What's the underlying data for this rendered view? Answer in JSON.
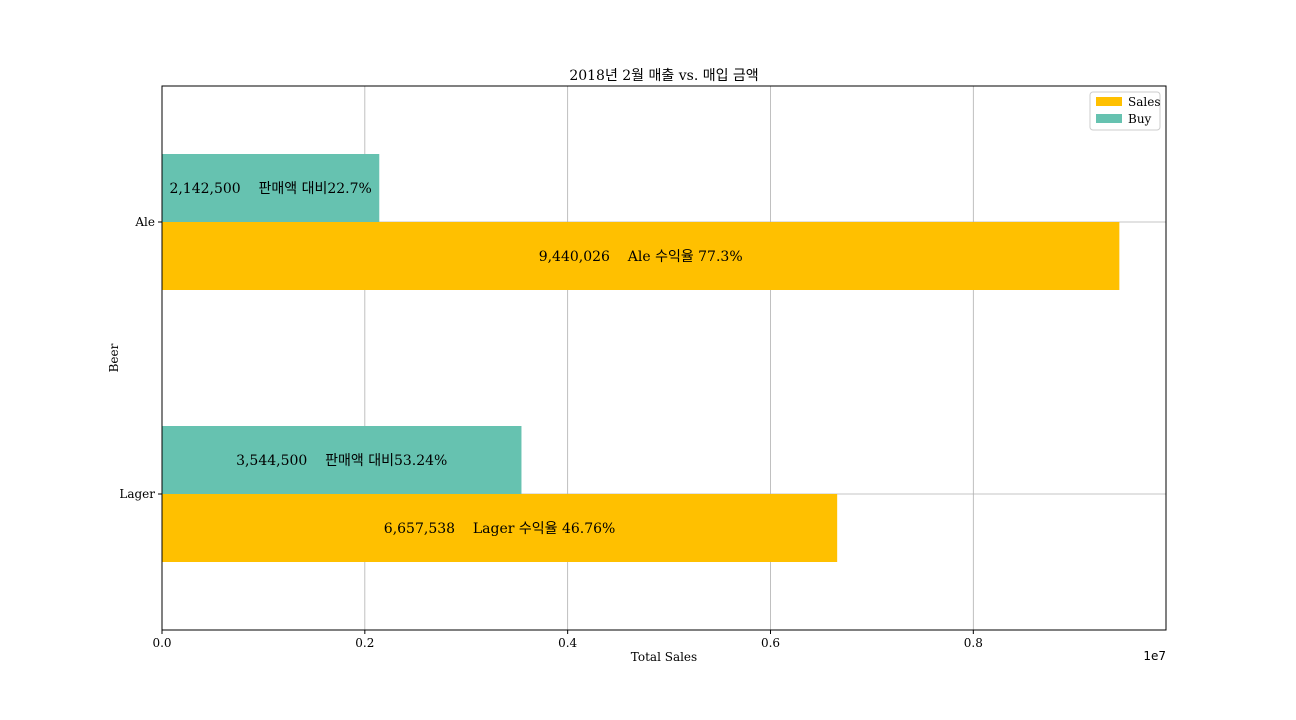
{
  "chart_data": {
    "type": "bar",
    "orientation": "horizontal",
    "title": "2018년 2월  매출 vs. 매입 금액",
    "xlabel": "Total Sales",
    "ylabel": "Beer",
    "x_offset_label": "1e7",
    "categories": [
      "Ale",
      "Lager"
    ],
    "xlim": [
      0,
      9900000
    ],
    "xticks": [
      0,
      2000000,
      4000000,
      6000000,
      8000000
    ],
    "xtick_labels": [
      "0.0",
      "0.2",
      "0.4",
      "0.6",
      "0.8"
    ],
    "grid": true,
    "legend_position": "top-right",
    "series": [
      {
        "name": "Sales",
        "color": "#ffc000",
        "values": [
          9440026,
          6657538
        ],
        "labels": [
          "9,440,026    Ale 수익율 77.3%",
          "6,657,538    Lager 수익율 46.76%"
        ]
      },
      {
        "name": "Buy",
        "color": "#66c2b0",
        "values": [
          2142500,
          3544500
        ],
        "labels": [
          "2,142,500    판매액 대비22.7%",
          "3,544,500    판매액 대비53.24%"
        ]
      }
    ]
  }
}
